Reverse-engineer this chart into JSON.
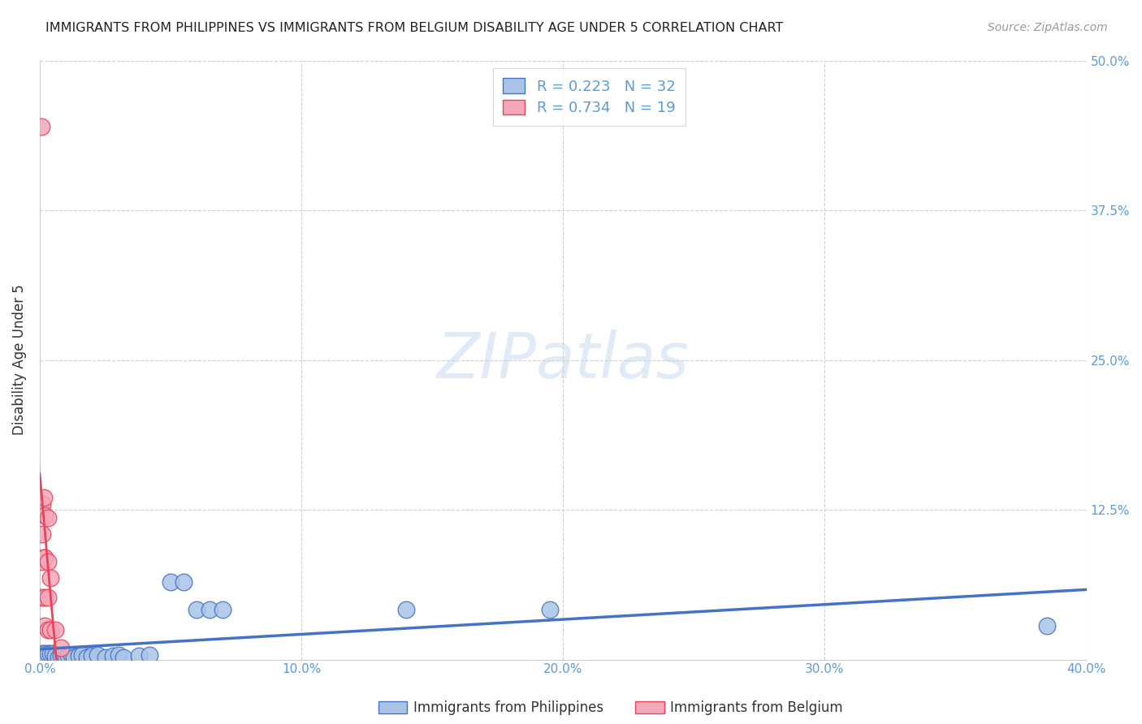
{
  "title": "IMMIGRANTS FROM PHILIPPINES VS IMMIGRANTS FROM BELGIUM DISABILITY AGE UNDER 5 CORRELATION CHART",
  "source": "Source: ZipAtlas.com",
  "ylabel": "Disability Age Under 5",
  "xlim": [
    0.0,
    0.4
  ],
  "ylim": [
    0.0,
    0.5
  ],
  "xticks": [
    0.0,
    0.1,
    0.2,
    0.3,
    0.4
  ],
  "yticks": [
    0.0,
    0.125,
    0.25,
    0.375,
    0.5
  ],
  "xtick_labels": [
    "0.0%",
    "10.0%",
    "20.0%",
    "30.0%",
    "40.0%"
  ],
  "ytick_labels": [
    "",
    "12.5%",
    "25.0%",
    "37.5%",
    "50.0%"
  ],
  "philippines_color": "#aac4e8",
  "belgium_color": "#f4a7b9",
  "philippines_line_color": "#4472c4",
  "belgium_line_color": "#e8435a",
  "philippines_x": [
    0.001,
    0.002,
    0.003,
    0.004,
    0.005,
    0.006,
    0.007,
    0.008,
    0.009,
    0.01,
    0.011,
    0.012,
    0.013,
    0.015,
    0.016,
    0.018,
    0.02,
    0.022,
    0.025,
    0.028,
    0.03,
    0.032,
    0.038,
    0.042,
    0.05,
    0.055,
    0.06,
    0.065,
    0.07,
    0.14,
    0.195,
    0.385
  ],
  "philippines_y": [
    0.005,
    0.005,
    0.005,
    0.005,
    0.005,
    0.003,
    0.002,
    0.003,
    0.004,
    0.002,
    0.003,
    0.004,
    0.002,
    0.003,
    0.004,
    0.002,
    0.003,
    0.004,
    0.002,
    0.003,
    0.004,
    0.002,
    0.003,
    0.004,
    0.065,
    0.065,
    0.042,
    0.042,
    0.042,
    0.042,
    0.042,
    0.028
  ],
  "belgium_x": [
    0.0005,
    0.001,
    0.001,
    0.001,
    0.001,
    0.0015,
    0.0015,
    0.002,
    0.002,
    0.002,
    0.002,
    0.003,
    0.003,
    0.003,
    0.003,
    0.004,
    0.004,
    0.006,
    0.008
  ],
  "belgium_y": [
    0.445,
    0.13,
    0.105,
    0.082,
    0.052,
    0.135,
    0.085,
    0.12,
    0.085,
    0.052,
    0.028,
    0.118,
    0.082,
    0.052,
    0.025,
    0.068,
    0.025,
    0.025,
    0.01
  ],
  "watermark": "ZIPatlas",
  "legend_label_1": "R = 0.223   N = 32",
  "legend_label_2": "R = 0.734   N = 19",
  "bottom_label_1": "Immigrants from Philippines",
  "bottom_label_2": "Immigrants from Belgium",
  "tick_color": "#5b9bd5",
  "grid_color": "#d0d0d0",
  "title_color": "#222222",
  "source_color": "#999999",
  "ylabel_color": "#333333"
}
